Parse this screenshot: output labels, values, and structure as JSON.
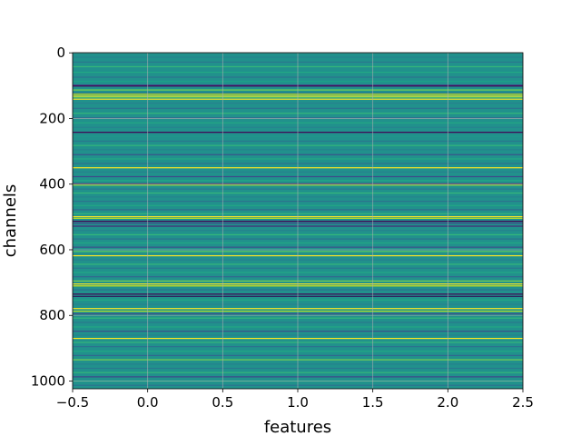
{
  "chart_data": {
    "type": "heatmap",
    "xlabel": "features",
    "ylabel": "channels",
    "xlim": [
      -0.5,
      2.5
    ],
    "ylim": [
      1023.5,
      -0.5
    ],
    "x_ticks": [
      -0.5,
      0.0,
      0.5,
      1.0,
      1.5,
      2.0,
      2.5
    ],
    "x_tick_labels": [
      "−0.5",
      "0.0",
      "0.5",
      "1.0",
      "1.5",
      "2.0",
      "2.5"
    ],
    "y_ticks": [
      0,
      200,
      400,
      600,
      800,
      1000
    ],
    "y_tick_labels": [
      "0",
      "200",
      "400",
      "600",
      "800",
      "1000"
    ],
    "grid": true,
    "colormap": "viridis",
    "base_color": "#21918c",
    "columns": 3,
    "rows": 1024,
    "row_bands": [
      {
        "row": 12,
        "color": "#25838e"
      },
      {
        "row": 27,
        "color": "#2a788e"
      },
      {
        "row": 41,
        "color": "#35b779"
      },
      {
        "row": 58,
        "color": "#22a884"
      },
      {
        "row": 73,
        "color": "#2c728e"
      },
      {
        "row": 86,
        "color": "#1fa088"
      },
      {
        "row": 97,
        "color": "#414487"
      },
      {
        "row": 100,
        "color": "#440154"
      },
      {
        "row": 112,
        "color": "#7ad151"
      },
      {
        "row": 121,
        "color": "#2a788e"
      },
      {
        "row": 125,
        "color": "#d2e21b"
      },
      {
        "row": 131,
        "color": "#fde725"
      },
      {
        "row": 134,
        "color": "#5ec962"
      },
      {
        "row": 140,
        "color": "#fde725"
      },
      {
        "row": 152,
        "color": "#26828e"
      },
      {
        "row": 168,
        "color": "#2c728e"
      },
      {
        "row": 183,
        "color": "#35b779"
      },
      {
        "row": 197,
        "color": "#31688e"
      },
      {
        "row": 212,
        "color": "#22a884"
      },
      {
        "row": 226,
        "color": "#26828e"
      },
      {
        "row": 241,
        "color": "#440154"
      },
      {
        "row": 253,
        "color": "#1f988b"
      },
      {
        "row": 268,
        "color": "#2a788e"
      },
      {
        "row": 281,
        "color": "#35b779"
      },
      {
        "row": 294,
        "color": "#25838e"
      },
      {
        "row": 309,
        "color": "#3b528b"
      },
      {
        "row": 322,
        "color": "#22a884"
      },
      {
        "row": 336,
        "color": "#2c728e"
      },
      {
        "row": 349,
        "color": "#fde725"
      },
      {
        "row": 362,
        "color": "#26828e"
      },
      {
        "row": 376,
        "color": "#3e4a89"
      },
      {
        "row": 388,
        "color": "#22a884"
      },
      {
        "row": 398,
        "color": "#440154"
      },
      {
        "row": 402,
        "color": "#95d840"
      },
      {
        "row": 414,
        "color": "#2a788e"
      },
      {
        "row": 426,
        "color": "#35b779"
      },
      {
        "row": 438,
        "color": "#26828e"
      },
      {
        "row": 451,
        "color": "#2c728e"
      },
      {
        "row": 464,
        "color": "#22a884"
      },
      {
        "row": 477,
        "color": "#31688e"
      },
      {
        "row": 489,
        "color": "#35b779"
      },
      {
        "row": 498,
        "color": "#fde725"
      },
      {
        "row": 503,
        "color": "#b5de2b"
      },
      {
        "row": 512,
        "color": "#440154"
      },
      {
        "row": 518,
        "color": "#3e4a89"
      },
      {
        "row": 527,
        "color": "#482878"
      },
      {
        "row": 540,
        "color": "#26828e"
      },
      {
        "row": 553,
        "color": "#35b779"
      },
      {
        "row": 566,
        "color": "#2c728e"
      },
      {
        "row": 578,
        "color": "#22a884"
      },
      {
        "row": 591,
        "color": "#3b528b"
      },
      {
        "row": 604,
        "color": "#5ec962"
      },
      {
        "row": 617,
        "color": "#fde725"
      },
      {
        "row": 630,
        "color": "#26828e"
      },
      {
        "row": 643,
        "color": "#35b779"
      },
      {
        "row": 655,
        "color": "#2a788e"
      },
      {
        "row": 668,
        "color": "#22a884"
      },
      {
        "row": 681,
        "color": "#31688e"
      },
      {
        "row": 694,
        "color": "#7ad151"
      },
      {
        "row": 703,
        "color": "#fde725"
      },
      {
        "row": 709,
        "color": "#d2e21b"
      },
      {
        "row": 721,
        "color": "#2c728e"
      },
      {
        "row": 734,
        "color": "#440154"
      },
      {
        "row": 741,
        "color": "#2d1e5c"
      },
      {
        "row": 752,
        "color": "#22a884"
      },
      {
        "row": 765,
        "color": "#26828e"
      },
      {
        "row": 778,
        "color": "#fde725"
      },
      {
        "row": 786,
        "color": "#b5de2b"
      },
      {
        "row": 794,
        "color": "#3e4a89"
      },
      {
        "row": 807,
        "color": "#35b779"
      },
      {
        "row": 820,
        "color": "#2a788e"
      },
      {
        "row": 834,
        "color": "#22a884"
      },
      {
        "row": 847,
        "color": "#3b528b"
      },
      {
        "row": 859,
        "color": "#26828e"
      },
      {
        "row": 869,
        "color": "#fde725"
      },
      {
        "row": 881,
        "color": "#35b779"
      },
      {
        "row": 894,
        "color": "#2c728e"
      },
      {
        "row": 908,
        "color": "#22a884"
      },
      {
        "row": 921,
        "color": "#31688e"
      },
      {
        "row": 934,
        "color": "#7ad151"
      },
      {
        "row": 947,
        "color": "#26828e"
      },
      {
        "row": 960,
        "color": "#2a788e"
      },
      {
        "row": 973,
        "color": "#35b779"
      },
      {
        "row": 986,
        "color": "#3e4a89"
      },
      {
        "row": 999,
        "color": "#22a884"
      },
      {
        "row": 1012,
        "color": "#2c728e"
      }
    ]
  }
}
